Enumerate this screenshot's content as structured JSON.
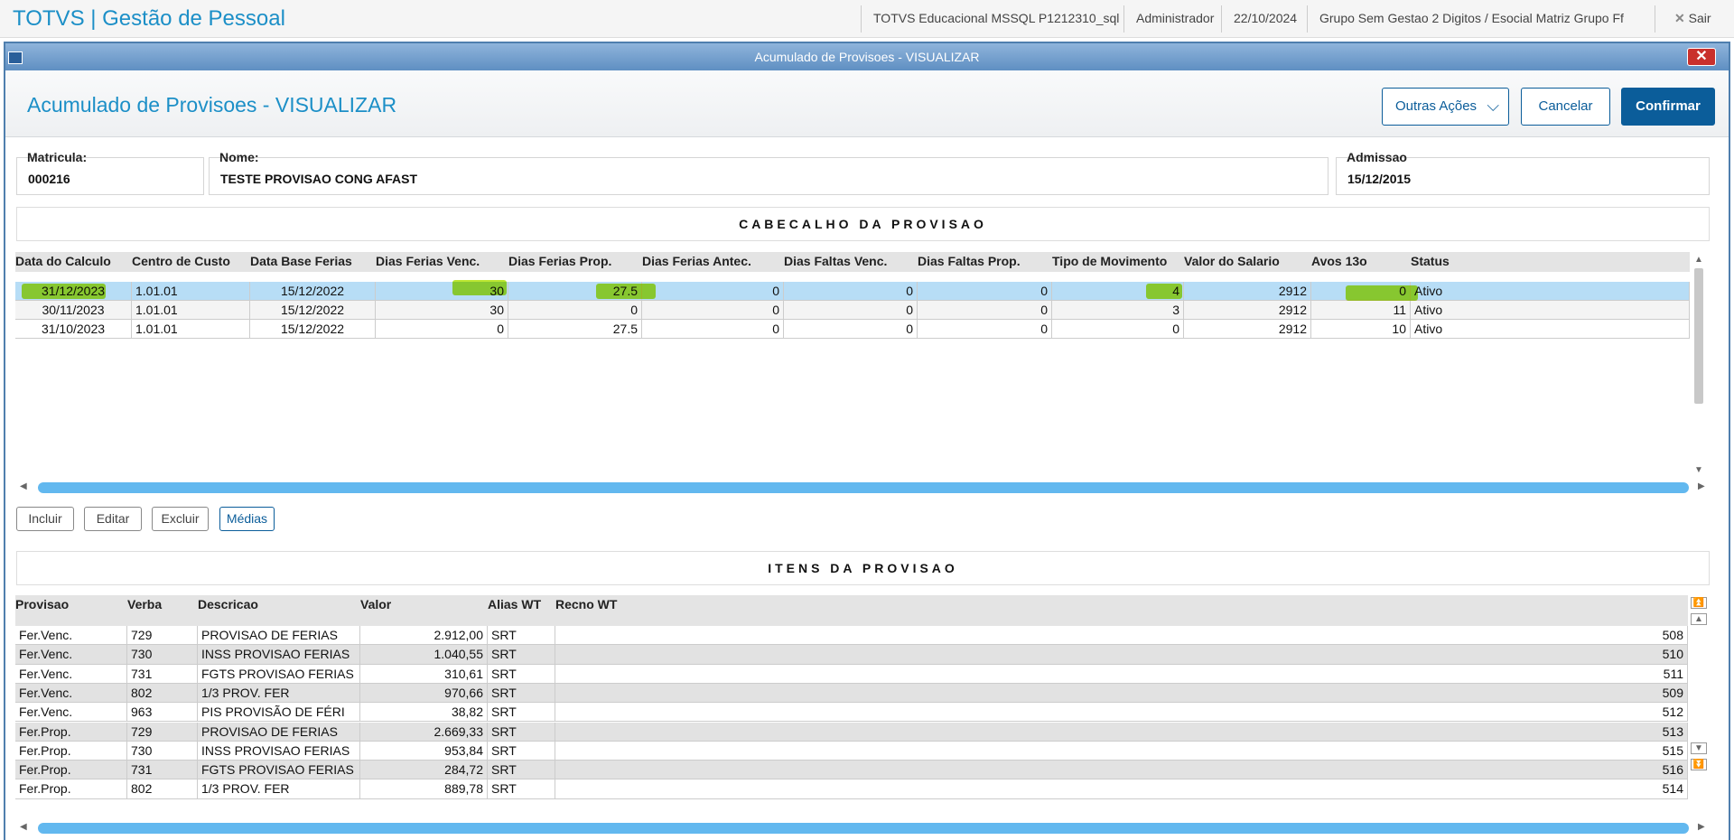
{
  "header": {
    "app_title": "TOTVS | Gestão de Pessoal",
    "info": [
      "TOTVS Educacional MSSQL P1212310_sql",
      "Administrador",
      "22/10/2024",
      "Grupo Sem Gestao 2 Digitos / Esocial Matriz Grupo Ff"
    ],
    "exit": "Sair"
  },
  "window": {
    "title": "Acumulado de Provisoes - VISUALIZAR"
  },
  "page": {
    "title": "Acumulado de Provisoes - VISUALIZAR",
    "buttons": [
      "Outras Ações",
      "Cancelar",
      "Confirmar"
    ]
  },
  "fields": [
    {
      "label": "Matricula:",
      "value": "000216"
    },
    {
      "label": "Nome:",
      "value": "TESTE PROVISAO CONG AFAST"
    },
    {
      "label": "Admissao",
      "value": "15/12/2015"
    }
  ],
  "header_section": {
    "title": "CABECALHO DA PROVISAO",
    "columns": [
      "Data do Calculo",
      "Centro de Custo",
      "Data Base Ferias",
      "Dias Ferias Venc.",
      "Dias Ferias Prop.",
      "Dias Ferias Antec.",
      "Dias Faltas Venc.",
      "Dias Faltas Prop.",
      "Tipo de Movimento",
      "Valor do Salario",
      "Avos 13o",
      "Status"
    ],
    "rows": [
      [
        "31/12/2023",
        "1.01.01",
        "15/12/2022",
        "30",
        "27.5",
        "0",
        "0",
        "0",
        "4",
        "2912",
        "0",
        "Ativo"
      ],
      [
        "30/11/2023",
        "1.01.01",
        "15/12/2022",
        "30",
        "0",
        "0",
        "0",
        "0",
        "3",
        "2912",
        "11",
        "Ativo"
      ],
      [
        "31/10/2023",
        "1.01.01",
        "15/12/2022",
        "0",
        "27.5",
        "0",
        "0",
        "0",
        "0",
        "2912",
        "10",
        "Ativo"
      ]
    ],
    "buttons": [
      "Incluir",
      "Editar",
      "Excluir",
      "Médias"
    ]
  },
  "items_section": {
    "title": "ITENS DA PROVISAO",
    "columns": [
      "Provisao",
      "Verba",
      "Descricao",
      "Valor",
      "Alias WT",
      "Recno WT"
    ],
    "rows": [
      [
        "Fer.Venc.",
        "729",
        "PROVISAO DE FERIAS",
        "2.912,00",
        "SRT",
        "508"
      ],
      [
        "Fer.Venc.",
        "730",
        "INSS PROVISAO FERIAS",
        "1.040,55",
        "SRT",
        "510"
      ],
      [
        "Fer.Venc.",
        "731",
        "FGTS PROVISAO FERIAS",
        "310,61",
        "SRT",
        "511"
      ],
      [
        "Fer.Venc.",
        "802",
        "1/3 PROV. FER",
        "970,66",
        "SRT",
        "509"
      ],
      [
        "Fer.Venc.",
        "963",
        "PIS PROVISÃO DE FÉRI",
        "38,82",
        "SRT",
        "512"
      ],
      [
        "Fer.Prop.",
        "729",
        "PROVISAO DE FERIAS",
        "2.669,33",
        "SRT",
        "513"
      ],
      [
        "Fer.Prop.",
        "730",
        "INSS PROVISAO FERIAS",
        "953,84",
        "SRT",
        "515"
      ],
      [
        "Fer.Prop.",
        "731",
        "FGTS PROVISAO FERIAS",
        "284,72",
        "SRT",
        "516"
      ],
      [
        "Fer.Prop.",
        "802",
        "1/3 PROV. FER",
        "889,78",
        "SRT",
        "514"
      ]
    ]
  }
}
